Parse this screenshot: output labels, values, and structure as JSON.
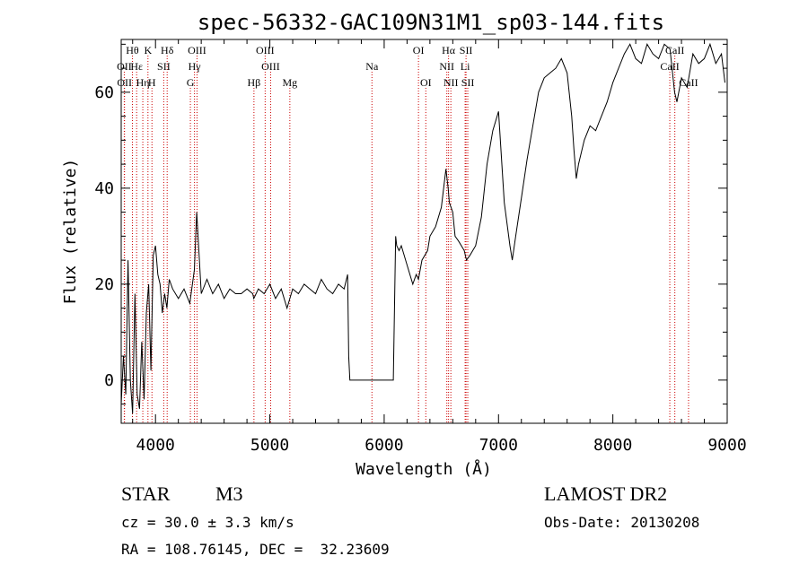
{
  "chart_data": {
    "type": "line",
    "title": "spec-56332-GAC109N31M1_sp03-144.fits",
    "xlabel": "Wavelength (Å)",
    "ylabel": "Flux (relative)",
    "xlim": [
      3700,
      9000
    ],
    "ylim": [
      -9,
      71
    ],
    "x_ticks": [
      4000,
      5000,
      6000,
      7000,
      8000,
      9000
    ],
    "y_ticks": [
      0,
      20,
      40,
      60
    ],
    "line_color": "#000000",
    "marker_color": "#cc0000",
    "spectrum": {
      "x": [
        3700,
        3720,
        3740,
        3760,
        3780,
        3800,
        3820,
        3840,
        3860,
        3880,
        3900,
        3920,
        3940,
        3960,
        3980,
        4000,
        4020,
        4040,
        4060,
        4080,
        4100,
        4120,
        4150,
        4200,
        4250,
        4300,
        4340,
        4360,
        4400,
        4450,
        4500,
        4550,
        4600,
        4650,
        4700,
        4750,
        4800,
        4850,
        4860,
        4900,
        4950,
        5000,
        5050,
        5100,
        5150,
        5200,
        5250,
        5300,
        5350,
        5400,
        5450,
        5500,
        5550,
        5600,
        5650,
        5680,
        5690,
        5700,
        5800,
        5900,
        6000,
        6080,
        6100,
        6110,
        6130,
        6150,
        6200,
        6250,
        6280,
        6300,
        6330,
        6380,
        6400,
        6450,
        6500,
        6540,
        6560,
        6570,
        6600,
        6620,
        6650,
        6700,
        6720,
        6750,
        6800,
        6850,
        6900,
        6950,
        7000,
        7050,
        7100,
        7120,
        7150,
        7200,
        7250,
        7300,
        7350,
        7400,
        7450,
        7500,
        7550,
        7600,
        7640,
        7660,
        7680,
        7700,
        7750,
        7800,
        7850,
        7900,
        7950,
        8000,
        8050,
        8100,
        8150,
        8200,
        8250,
        8300,
        8350,
        8400,
        8450,
        8500,
        8540,
        8560,
        8600,
        8650,
        8700,
        8750,
        8800,
        8850,
        8900,
        8950,
        8980
      ],
      "y": [
        -5,
        5,
        -3,
        25,
        0,
        -7,
        18,
        -3,
        -6,
        8,
        -4,
        14,
        20,
        2,
        26,
        28,
        22,
        20,
        14,
        18,
        15,
        21,
        19,
        17,
        19,
        16,
        23,
        35,
        18,
        21,
        18,
        20,
        17,
        19,
        18,
        18,
        19,
        18,
        17,
        19,
        18,
        20,
        17,
        19,
        15,
        19,
        18,
        20,
        19,
        18,
        21,
        19,
        18,
        20,
        19,
        22,
        5,
        0,
        0,
        0,
        0,
        0,
        30,
        28,
        27,
        28,
        24,
        20,
        22,
        21,
        25,
        27,
        30,
        32,
        36,
        44,
        40,
        37,
        35,
        30,
        29,
        27,
        25,
        26,
        28,
        34,
        45,
        52,
        56,
        37,
        28,
        25,
        30,
        38,
        46,
        53,
        60,
        63,
        64,
        65,
        67,
        64,
        55,
        48,
        42,
        45,
        50,
        53,
        52,
        55,
        58,
        62,
        65,
        68,
        70,
        67,
        66,
        70,
        68,
        67,
        70,
        69,
        60,
        58,
        63,
        61,
        68,
        66,
        67,
        70,
        66,
        68,
        62
      ]
    },
    "lines": [
      {
        "label": "Hθ",
        "x": 3798,
        "row": 0
      },
      {
        "label": "OII",
        "x": 3727,
        "row": 1
      },
      {
        "label": "OII",
        "x": 3729,
        "row": 2
      },
      {
        "label": "Hε",
        "x": 3835,
        "row": 1
      },
      {
        "label": "Hη",
        "x": 3889,
        "row": 2
      },
      {
        "label": "K",
        "x": 3934,
        "row": 0
      },
      {
        "label": "H",
        "x": 3969,
        "row": 2
      },
      {
        "label": "SII",
        "x": 4072,
        "row": 1
      },
      {
        "label": "Hδ",
        "x": 4102,
        "row": 0
      },
      {
        "label": "OIII",
        "x": 4363,
        "row": 0
      },
      {
        "label": "Hγ",
        "x": 4341,
        "row": 1
      },
      {
        "label": "G",
        "x": 4305,
        "row": 2
      },
      {
        "label": "OIII",
        "x": 4959,
        "row": 0
      },
      {
        "label": "OIII",
        "x": 5007,
        "row": 1
      },
      {
        "label": "Hβ",
        "x": 4861,
        "row": 2
      },
      {
        "label": "Mg",
        "x": 5175,
        "row": 2
      },
      {
        "label": "Na",
        "x": 5893,
        "row": 1
      },
      {
        "label": "OI",
        "x": 6300,
        "row": 0
      },
      {
        "label": "OI",
        "x": 6364,
        "row": 2
      },
      {
        "label": "Hα",
        "x": 6563,
        "row": 0
      },
      {
        "label": "NII",
        "x": 6548,
        "row": 1
      },
      {
        "label": "NII",
        "x": 6583,
        "row": 2
      },
      {
        "label": "SII",
        "x": 6716,
        "row": 0
      },
      {
        "label": "Li",
        "x": 6708,
        "row": 1
      },
      {
        "label": "SII",
        "x": 6731,
        "row": 2
      },
      {
        "label": "CaII",
        "x": 8542,
        "row": 0
      },
      {
        "label": "CaII",
        "x": 8498,
        "row": 1
      },
      {
        "label": "CaII",
        "x": 8662,
        "row": 2
      }
    ]
  },
  "info": {
    "class_label": "STAR",
    "subclass_label": "M3",
    "survey_label": "LAMOST DR2",
    "cz_text": "cz = 30.0 ± 3.3 km/s",
    "obs_date_text": "Obs-Date: 20130208",
    "radec_text": "RA = 108.76145, DEC =  32.23609"
  }
}
